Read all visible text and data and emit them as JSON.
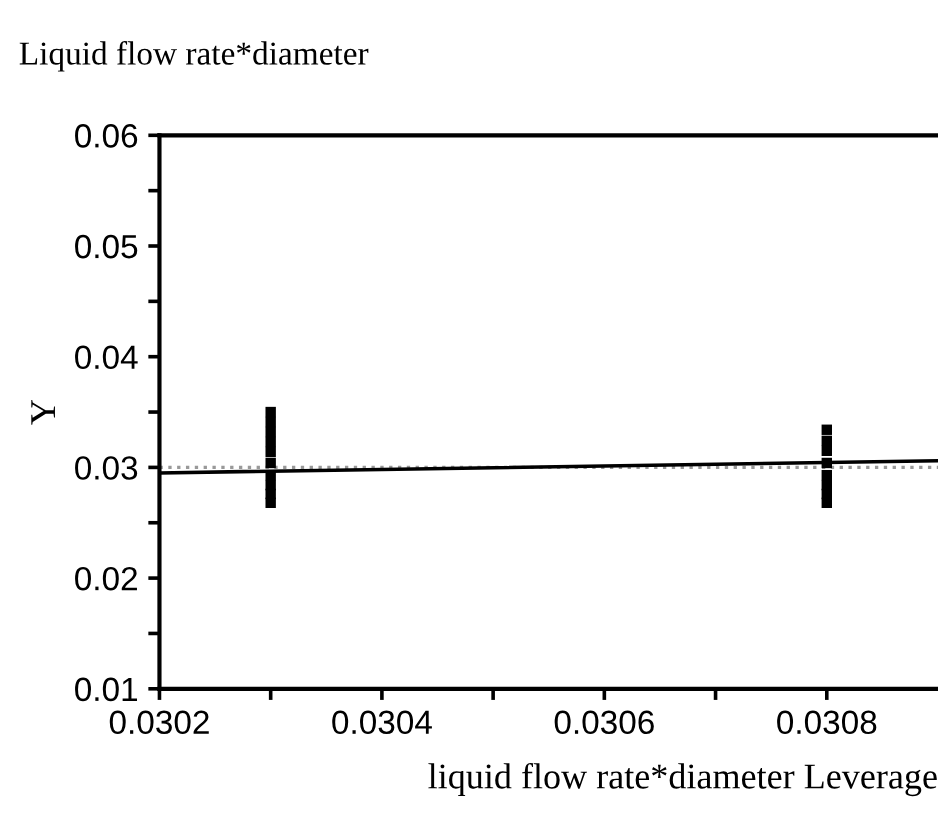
{
  "chart_data": {
    "type": "scatter",
    "title": "Liquid flow rate*diameter",
    "xlabel": "liquid flow rate*diameter Leverage",
    "ylabel": "Y",
    "series": [
      {
        "color": "#000000",
        "marker": "square",
        "x": [
          0.0303,
          0.0303,
          0.0303,
          0.0303,
          0.0303,
          0.0303,
          0.0303,
          0.0303,
          0.0303,
          0.0303,
          0.0308,
          0.0308,
          0.0308,
          0.0308,
          0.0308,
          0.0308,
          0.0308,
          0.0308
        ],
        "values": [
          0.035,
          0.0341,
          0.0332,
          0.0323,
          0.0314,
          0.0304,
          0.0293,
          0.0284,
          0.0276,
          0.0268,
          0.0334,
          0.0324,
          0.0315,
          0.0304,
          0.0293,
          0.0284,
          0.0276,
          0.0268
        ]
      },
      {
        "type": "line",
        "color": "#000000",
        "x": [
          0.0302,
          0.0309
        ],
        "values": [
          0.0295,
          0.0306
        ]
      }
    ],
    "ref_lines": [
      {
        "axis": "y",
        "value": 0.03,
        "color": "#999999",
        "line_style": "dotted"
      }
    ],
    "xlim": [
      0.0302,
      0.0309
    ],
    "ylim": [
      0.01,
      0.06
    ],
    "xticks": [
      0.0302,
      {
        "value": 0.0303,
        "label": null
      },
      0.0304,
      {
        "value": 0.0305,
        "label": null
      },
      0.0306,
      {
        "value": 0.0307,
        "label": null
      },
      0.0308
    ],
    "yticks": [
      0.01,
      {
        "value": 0.015,
        "label": null
      },
      0.02,
      {
        "value": 0.025,
        "label": null
      },
      0.03,
      {
        "value": 0.035,
        "label": null
      },
      0.04,
      {
        "value": 0.045,
        "label": null
      },
      0.05,
      {
        "value": 0.055,
        "label": null
      },
      0.06
    ],
    "grid": false,
    "legend": false
  }
}
